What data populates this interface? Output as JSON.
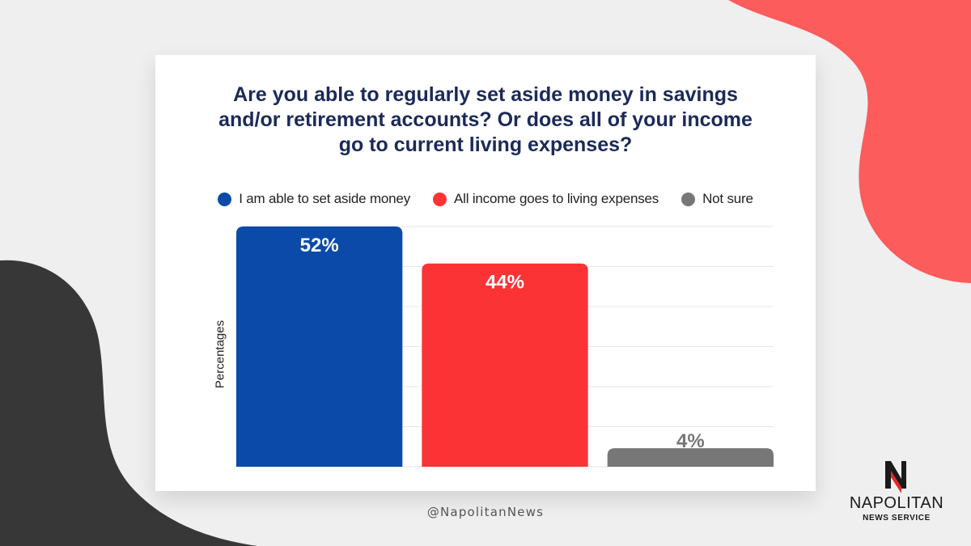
{
  "colors": {
    "background": "#efefef",
    "accent_coral": "#fc5c5c",
    "accent_dark": "#373737",
    "title": "#1b2a57"
  },
  "chart_data": {
    "type": "bar",
    "title": "Are you able to regularly set aside money in savings and/or retirement accounts? Or does all of your income go to current living expenses?",
    "ylabel": "Percentages",
    "xlabel": "",
    "ylim": [
      0,
      52
    ],
    "grid": true,
    "legend_position": "top",
    "categories": [
      "I am able to set aside money",
      "All income goes to living expenses",
      "Not sure"
    ],
    "values": [
      52,
      44,
      4
    ],
    "value_labels": [
      "52%",
      "44%",
      "4%"
    ],
    "colors": [
      "#0b4aa9",
      "#fb3335",
      "#777777"
    ],
    "label_colors": [
      "#ffffff",
      "#ffffff",
      "#777777"
    ]
  },
  "footer": {
    "handle": "@NapolitanNews",
    "logo_name": "NAPOLITAN",
    "logo_sub": "NEWS SERVICE",
    "logo_icon": "napolitan-n-icon"
  }
}
